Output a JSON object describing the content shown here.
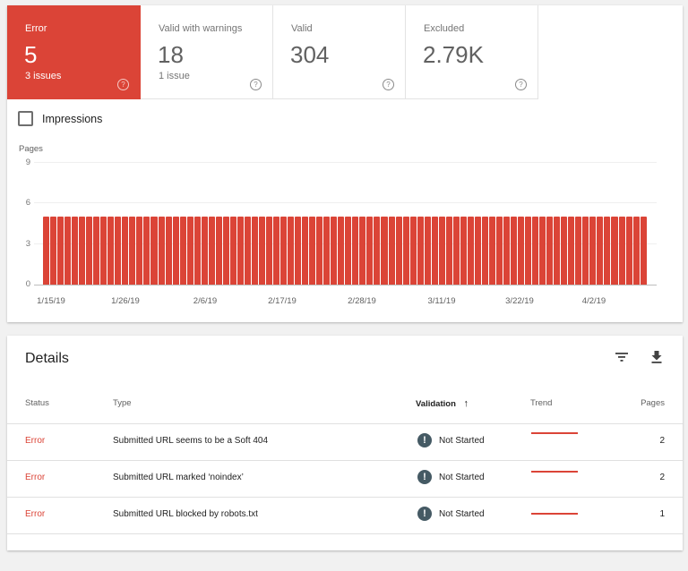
{
  "summary": {
    "tiles": [
      {
        "label": "Error",
        "value": "5",
        "sub": "3 issues",
        "active": true
      },
      {
        "label": "Valid with warnings",
        "value": "18",
        "sub": "1 issue",
        "active": false
      },
      {
        "label": "Valid",
        "value": "304",
        "sub": "",
        "active": false
      },
      {
        "label": "Excluded",
        "value": "2.79K",
        "sub": "",
        "active": false
      }
    ],
    "help_glyph": "?"
  },
  "impressions": {
    "label": "Impressions",
    "checked": false
  },
  "chart_data": {
    "type": "bar",
    "title": "",
    "xlabel": "",
    "ylabel": "Pages",
    "ylim": [
      0,
      9
    ],
    "y_ticks": [
      "0",
      "3",
      "6",
      "9"
    ],
    "x_tick_labels": [
      "1/15/19",
      "1/26/19",
      "2/6/19",
      "2/17/19",
      "2/28/19",
      "3/11/19",
      "3/22/19",
      "4/2/19"
    ],
    "grid": true,
    "legend": "none",
    "series": [
      {
        "name": "Error",
        "color": "#db4437",
        "start_date": "1/15/19",
        "end_date": "4/8/19",
        "count": 84,
        "values": [
          5,
          5,
          5,
          5,
          5,
          5,
          5,
          5,
          5,
          5,
          5,
          5,
          5,
          5,
          5,
          5,
          5,
          5,
          5,
          5,
          5,
          5,
          5,
          5,
          5,
          5,
          5,
          5,
          5,
          5,
          5,
          5,
          5,
          5,
          5,
          5,
          5,
          5,
          5,
          5,
          5,
          5,
          5,
          5,
          5,
          5,
          5,
          5,
          5,
          5,
          5,
          5,
          5,
          5,
          5,
          5,
          5,
          5,
          5,
          5,
          5,
          5,
          5,
          5,
          5,
          5,
          5,
          5,
          5,
          5,
          5,
          5,
          5,
          5,
          5,
          5,
          5,
          5,
          5,
          5,
          5,
          5,
          5,
          5
        ]
      }
    ]
  },
  "details": {
    "title": "Details",
    "filter_icon": "filter-icon",
    "download_icon": "download-icon",
    "columns": {
      "status": "Status",
      "type": "Type",
      "validation": "Validation",
      "validation_sort": "↑",
      "trend": "Trend",
      "pages": "Pages"
    },
    "rows": [
      {
        "status": "Error",
        "type": "Submitted URL seems to be a Soft 404",
        "validation_icon": "!",
        "validation": "Not Started",
        "pages": "2"
      },
      {
        "status": "Error",
        "type": "Submitted URL marked ‘noindex’",
        "validation_icon": "!",
        "validation": "Not Started",
        "pages": "2"
      },
      {
        "status": "Error",
        "type": "Submitted URL blocked by robots.txt",
        "validation_icon": "!",
        "validation": "Not Started",
        "pages": "1"
      }
    ]
  },
  "colors": {
    "error": "#db4437",
    "validation_icon": "#455a64"
  }
}
